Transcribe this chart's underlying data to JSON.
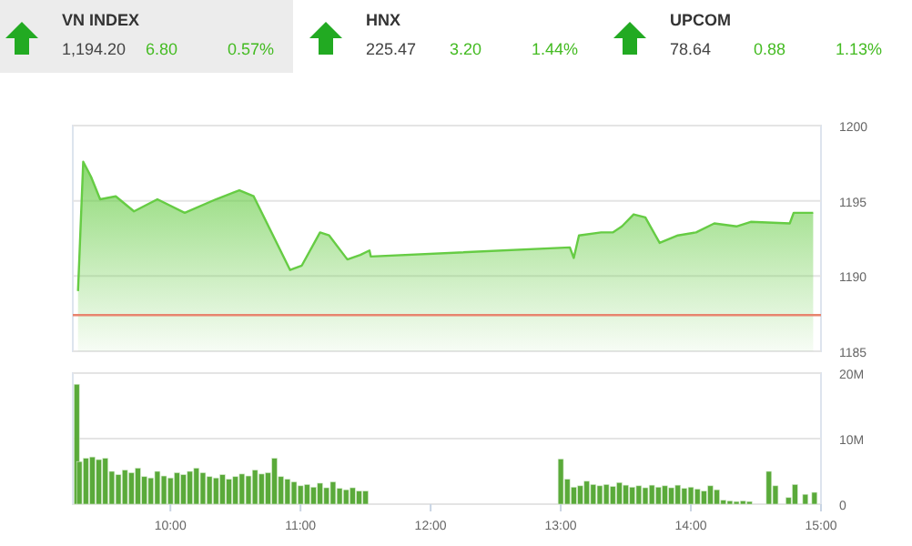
{
  "chart_data": [
    {
      "type": "other",
      "annotations": [
        "VN INDEX",
        "1,194.20",
        "6.80",
        "0.57%",
        "HNX",
        "225.47",
        "3.20",
        "1.44%",
        "UPCOM",
        "78.64",
        "0.88",
        "1.13%"
      ]
    },
    {
      "type": "area",
      "x": [
        9.29,
        9.33,
        9.39,
        9.46,
        9.58,
        9.72,
        9.9,
        10.11,
        10.35,
        10.53,
        10.64,
        10.92,
        11.01,
        11.15,
        11.22,
        11.36,
        11.46,
        11.53,
        11.54,
        13.07,
        13.1,
        13.14,
        13.31,
        13.4,
        13.47,
        13.56,
        13.65,
        13.76,
        13.9,
        14.04,
        14.18,
        14.35,
        14.46,
        14.76,
        14.79,
        14.94
      ],
      "series": [
        {
          "color": "#66cc44",
          "values": [
            1189.0,
            1197.6,
            1196.6,
            1195.1,
            1195.3,
            1194.3,
            1195.1,
            1194.2,
            1195.1,
            1195.7,
            1195.3,
            1190.4,
            1190.7,
            1192.9,
            1192.7,
            1191.1,
            1191.4,
            1191.7,
            1191.3,
            1191.9,
            1191.2,
            1192.7,
            1192.9,
            1192.9,
            1193.3,
            1194.1,
            1193.9,
            1192.2,
            1192.7,
            1192.9,
            1193.5,
            1193.3,
            1193.6,
            1193.5,
            1194.2,
            1194.2
          ]
        }
      ],
      "xlim": [
        9.25,
        15.0
      ],
      "ylim": [
        1185,
        1200
      ],
      "yticks": [
        1185,
        1190,
        1195,
        1200
      ],
      "grid": "y",
      "tick_labels": "y",
      "ref_lines": [
        {
          "axis": "y",
          "value": 1187.4,
          "color": "#e8846e"
        }
      ]
    },
    {
      "type": "bar",
      "x": [
        9.28,
        9.3,
        9.35,
        9.4,
        9.45,
        9.5,
        9.55,
        9.6,
        9.65,
        9.7,
        9.75,
        9.8,
        9.85,
        9.9,
        9.95,
        10.0,
        10.05,
        10.1,
        10.15,
        10.2,
        10.25,
        10.3,
        10.35,
        10.4,
        10.45,
        10.5,
        10.55,
        10.6,
        10.65,
        10.7,
        10.75,
        10.8,
        10.85,
        10.9,
        10.95,
        11.0,
        11.05,
        11.1,
        11.15,
        11.2,
        11.25,
        11.3,
        11.35,
        11.4,
        11.45,
        11.5,
        13.0,
        13.05,
        13.1,
        13.15,
        13.2,
        13.25,
        13.3,
        13.35,
        13.4,
        13.45,
        13.5,
        13.55,
        13.6,
        13.65,
        13.7,
        13.75,
        13.8,
        13.85,
        13.9,
        13.95,
        14.0,
        14.05,
        14.1,
        14.15,
        14.2,
        14.25,
        14.3,
        14.35,
        14.4,
        14.45,
        14.6,
        14.65,
        14.75,
        14.8,
        14.88,
        14.95
      ],
      "series": [
        {
          "color": "#5aaa3a",
          "values": [
            18.3,
            6.5,
            7.0,
            7.2,
            6.8,
            7.0,
            5.0,
            4.5,
            5.2,
            4.8,
            5.5,
            4.2,
            4.0,
            5.0,
            4.3,
            4.0,
            4.8,
            4.5,
            5.0,
            5.5,
            4.8,
            4.2,
            4.0,
            4.5,
            3.8,
            4.2,
            4.6,
            4.3,
            5.2,
            4.6,
            4.8,
            7.0,
            4.2,
            3.8,
            3.4,
            2.8,
            3.0,
            2.6,
            3.2,
            2.5,
            3.4,
            2.4,
            2.2,
            2.5,
            2.0,
            2.0,
            6.9,
            3.8,
            2.6,
            2.8,
            3.5,
            3.0,
            2.8,
            3.0,
            2.7,
            3.3,
            2.9,
            2.6,
            2.8,
            2.5,
            2.9,
            2.6,
            2.8,
            2.5,
            2.9,
            2.4,
            2.6,
            2.3,
            2.0,
            2.8,
            2.2,
            0.6,
            0.5,
            0.4,
            0.5,
            0.4,
            5.0,
            2.8,
            1.0,
            3.0,
            1.5,
            1.8
          ]
        }
      ],
      "xlim": [
        9.25,
        15.0
      ],
      "ylim": [
        0,
        20
      ],
      "yticks": [
        0,
        {
          "value": 10,
          "label": "10M"
        },
        {
          "value": 20,
          "label": "20M"
        }
      ],
      "xticks": [
        {
          "value": 10,
          "label": "10:00"
        },
        {
          "value": 11,
          "label": "11:00"
        },
        {
          "value": 12,
          "label": "12:00"
        },
        {
          "value": 13,
          "label": "13:00"
        },
        {
          "value": 14,
          "label": "14:00"
        },
        {
          "value": 15,
          "label": "15:00"
        }
      ],
      "grid": "y"
    }
  ]
}
